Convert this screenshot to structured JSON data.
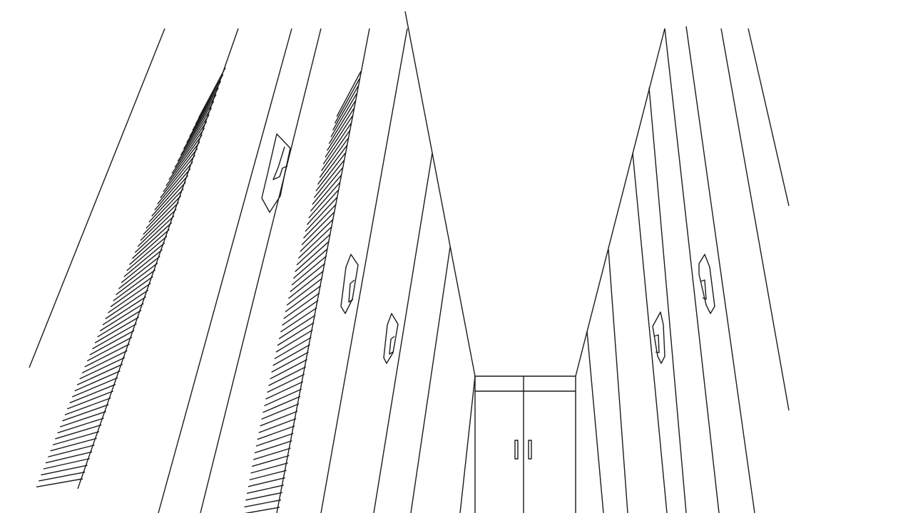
{
  "drawing": {
    "subject": "",
    "colors": {
      "stroke": "#1a1a1a",
      "background": "#ffffff"
    }
  }
}
